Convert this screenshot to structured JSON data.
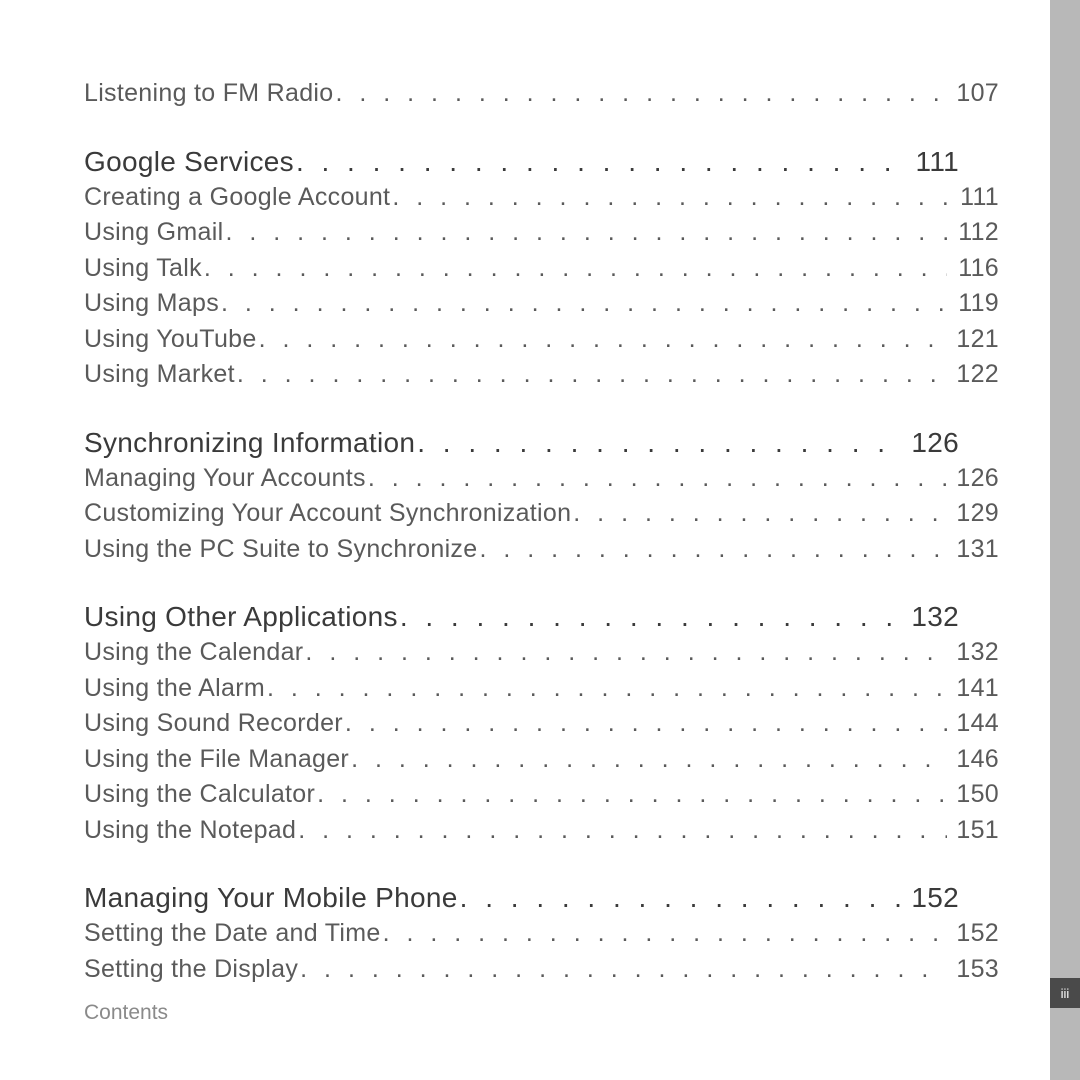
{
  "page_marker": "iii",
  "footer": "Contents",
  "colors": {
    "sidebar": "#b8b8b8",
    "tab": "#4a4a4a",
    "section_text": "#3a3a3a",
    "sub_text": "#5a5a5a",
    "footer_text": "#8a8a8a",
    "background": "#ffffff"
  },
  "typography": {
    "section_fontsize_pt": 21,
    "sub_fontsize_pt": 19,
    "footer_fontsize_pt": 16
  },
  "toc": [
    {
      "type": "sub",
      "label": "Listening to FM Radio",
      "page": "107",
      "first": true
    },
    {
      "type": "section",
      "label": "Google Services",
      "page": "111"
    },
    {
      "type": "sub",
      "label": "Creating a Google Account",
      "page": "111"
    },
    {
      "type": "sub",
      "label": "Using Gmail",
      "page": "112"
    },
    {
      "type": "sub",
      "label": "Using Talk",
      "page": "116"
    },
    {
      "type": "sub",
      "label": "Using Maps",
      "page": "119"
    },
    {
      "type": "sub",
      "label": "Using YouTube",
      "page": "121"
    },
    {
      "type": "sub",
      "label": "Using Market",
      "page": "122"
    },
    {
      "type": "section",
      "label": "Synchronizing Information",
      "page": "126"
    },
    {
      "type": "sub",
      "label": "Managing Your Accounts",
      "page": "126"
    },
    {
      "type": "sub",
      "label": "Customizing Your Account Synchronization",
      "page": "129"
    },
    {
      "type": "sub",
      "label": "Using the PC Suite to Synchronize",
      "page": "131"
    },
    {
      "type": "section",
      "label": "Using Other Applications",
      "page": "132"
    },
    {
      "type": "sub",
      "label": "Using the Calendar",
      "page": "132"
    },
    {
      "type": "sub",
      "label": "Using the Alarm",
      "page": "141"
    },
    {
      "type": "sub",
      "label": "Using Sound Recorder",
      "page": "144"
    },
    {
      "type": "sub",
      "label": "Using the File Manager",
      "page": "146"
    },
    {
      "type": "sub",
      "label": "Using the Calculator",
      "page": "150"
    },
    {
      "type": "sub",
      "label": "Using the Notepad",
      "page": "151"
    },
    {
      "type": "section",
      "label": "Managing Your Mobile Phone",
      "page": "152"
    },
    {
      "type": "sub",
      "label": "Setting the Date and Time",
      "page": "152"
    },
    {
      "type": "sub",
      "label": "Setting the Display",
      "page": "153"
    }
  ]
}
